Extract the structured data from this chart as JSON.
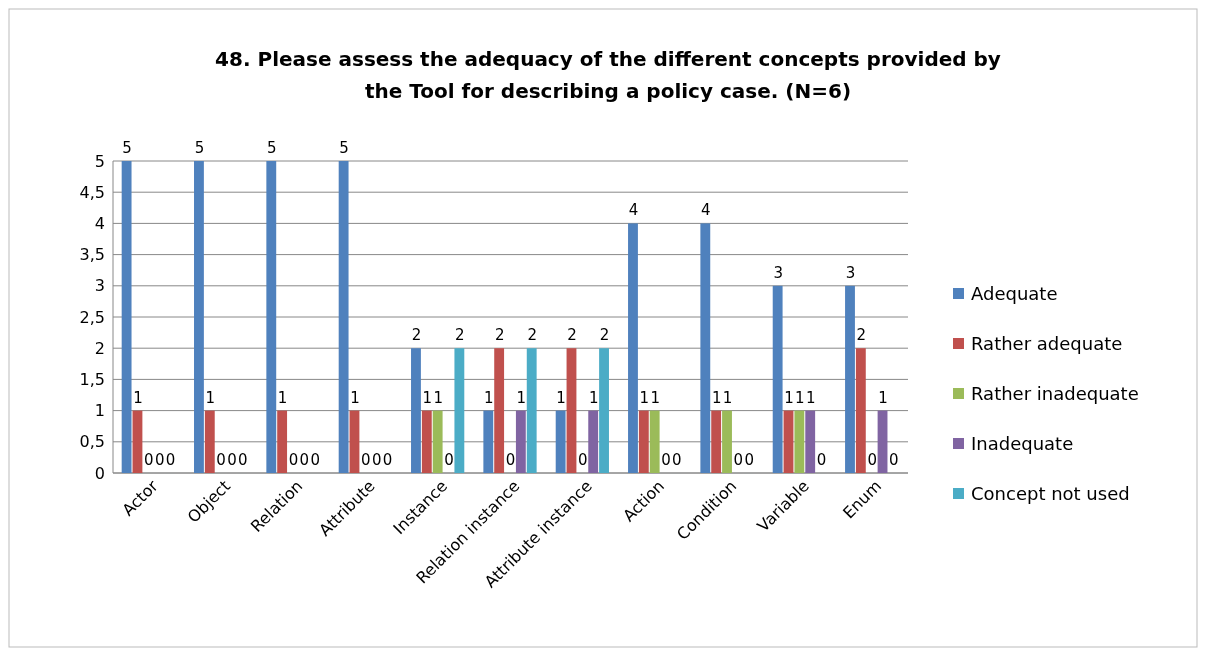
{
  "chart_data": {
    "type": "bar",
    "title": "48. Please assess the adequacy of the different concepts provided by the Tool for describing a policy case. (N=6)",
    "categories": [
      "Actor",
      "Object",
      "Relation",
      "Attribute",
      "Instance",
      "Relation instance",
      "Attribute instance",
      "Action",
      "Condition",
      "Variable",
      "Enum"
    ],
    "series": [
      {
        "name": "Adequate",
        "color": "#4f81bd",
        "values": [
          5,
          5,
          5,
          5,
          2,
          1,
          1,
          4,
          4,
          3,
          3
        ]
      },
      {
        "name": "Rather adequate",
        "color": "#c0504d",
        "values": [
          1,
          1,
          1,
          1,
          1,
          2,
          2,
          1,
          1,
          1,
          2
        ]
      },
      {
        "name": "Rather inadequate",
        "color": "#9bbb59",
        "values": [
          0,
          0,
          0,
          0,
          1,
          0,
          0,
          1,
          1,
          1,
          0
        ]
      },
      {
        "name": "Inadequate",
        "color": "#8064a2",
        "values": [
          0,
          0,
          0,
          0,
          0,
          1,
          1,
          0,
          0,
          1,
          1
        ]
      },
      {
        "name": "Concept not used",
        "color": "#4bacc6",
        "values": [
          0,
          0,
          0,
          0,
          2,
          2,
          2,
          0,
          0,
          0,
          0
        ]
      }
    ],
    "ylim": [
      0,
      5
    ],
    "yticks": [
      0,
      {
        "value": 0.5,
        "label": "0,5"
      },
      1,
      {
        "value": 1.5,
        "label": "1,5"
      },
      2,
      {
        "value": 2.5,
        "label": "2,5"
      },
      3,
      {
        "value": 3.5,
        "label": "3,5"
      },
      4,
      {
        "value": 4.5,
        "label": "4,5"
      },
      5
    ],
    "grid": "y",
    "legend": "right",
    "data_labels": true
  }
}
